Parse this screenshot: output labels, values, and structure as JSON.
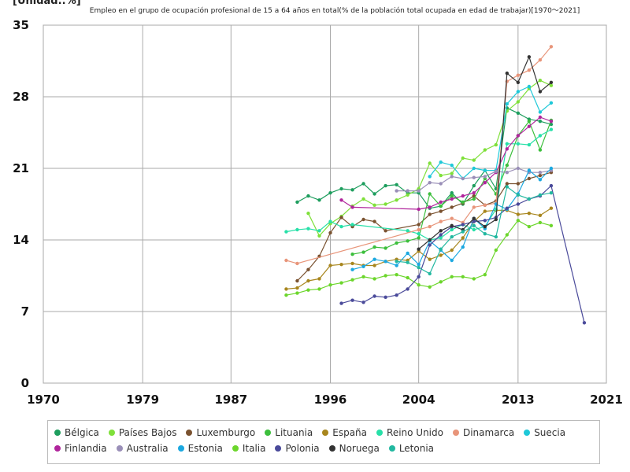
{
  "unit_label": "[Unidad.:%]",
  "chart_data": {
    "type": "line",
    "title": "Empleo en el grupo de ocupación profesional de 15 a 64 años en total(% de la población total ocupada en edad de trabajar)[1970～2021]",
    "xlabel": "",
    "ylabel": "",
    "xlim": [
      1970,
      2021
    ],
    "ylim": [
      0,
      35
    ],
    "xticks": [
      1970,
      1979,
      1987,
      1996,
      2004,
      2013,
      2021
    ],
    "yticks": [
      0,
      7,
      14,
      21,
      28,
      35
    ],
    "grid": true,
    "legend_position": "bottom",
    "series": [
      {
        "name": "Bélgica",
        "color": "#1e9e5e",
        "points": [
          [
            1993,
            17.7
          ],
          [
            1994,
            18.3
          ],
          [
            1995,
            17.9
          ],
          [
            1996,
            18.6
          ],
          [
            1997,
            19.0
          ],
          [
            1998,
            18.9
          ],
          [
            1999,
            19.5
          ],
          [
            2000,
            18.5
          ],
          [
            2001,
            19.3
          ],
          [
            2002,
            19.4
          ],
          [
            2003,
            18.6
          ],
          [
            2004,
            18.6
          ],
          [
            2005,
            17.1
          ],
          [
            2006,
            17.3
          ],
          [
            2007,
            18.6
          ],
          [
            2008,
            17.5
          ],
          [
            2009,
            19.3
          ],
          [
            2010,
            20.8
          ],
          [
            2011,
            19.0
          ],
          [
            2012,
            26.9
          ],
          [
            2013,
            26.4
          ],
          [
            2014,
            25.8
          ],
          [
            2015,
            25.6
          ],
          [
            2016,
            25.3
          ]
        ]
      },
      {
        "name": "Países Bajos",
        "color": "#7fe03a",
        "points": [
          [
            1994,
            16.6
          ],
          [
            1995,
            14.4
          ],
          [
            1996,
            15.6
          ],
          [
            1997,
            16.3
          ],
          [
            1998,
            17.3
          ],
          [
            1999,
            18.0
          ],
          [
            2000,
            17.4
          ],
          [
            2001,
            17.5
          ],
          [
            2002,
            17.9
          ],
          [
            2003,
            18.4
          ],
          [
            2004,
            19.0
          ],
          [
            2005,
            21.5
          ],
          [
            2006,
            20.3
          ],
          [
            2007,
            20.5
          ],
          [
            2008,
            22.0
          ],
          [
            2009,
            21.8
          ],
          [
            2010,
            22.8
          ],
          [
            2011,
            23.3
          ],
          [
            2012,
            26.6
          ],
          [
            2013,
            27.5
          ],
          [
            2014,
            28.8
          ],
          [
            2015,
            29.6
          ],
          [
            2016,
            29.1
          ]
        ]
      },
      {
        "name": "Luxemburgo",
        "color": "#7a5230",
        "points": [
          [
            1993,
            10.0
          ],
          [
            1994,
            11.1
          ],
          [
            1995,
            12.4
          ],
          [
            1996,
            14.7
          ],
          [
            1997,
            16.2
          ],
          [
            1998,
            15.3
          ],
          [
            1999,
            16.0
          ],
          [
            2000,
            15.8
          ],
          [
            2001,
            14.9
          ],
          [
            2004,
            15.5
          ],
          [
            2005,
            16.5
          ],
          [
            2006,
            16.8
          ],
          [
            2007,
            17.2
          ],
          [
            2008,
            17.6
          ],
          [
            2009,
            18.3
          ],
          [
            2010,
            17.4
          ],
          [
            2011,
            17.8
          ],
          [
            2012,
            19.5
          ],
          [
            2013,
            19.5
          ],
          [
            2014,
            20.0
          ],
          [
            2015,
            20.3
          ],
          [
            2016,
            20.6
          ]
        ]
      },
      {
        "name": "Lituania",
        "color": "#3cbf3c",
        "points": [
          [
            1998,
            12.6
          ],
          [
            1999,
            12.8
          ],
          [
            2000,
            13.3
          ],
          [
            2001,
            13.2
          ],
          [
            2002,
            13.7
          ],
          [
            2003,
            13.9
          ],
          [
            2004,
            14.2
          ],
          [
            2005,
            18.5
          ],
          [
            2006,
            17.3
          ],
          [
            2007,
            18.3
          ],
          [
            2008,
            17.7
          ],
          [
            2009,
            18.0
          ],
          [
            2010,
            20.0
          ],
          [
            2011,
            18.5
          ],
          [
            2012,
            21.3
          ],
          [
            2013,
            24.2
          ],
          [
            2014,
            25.6
          ],
          [
            2015,
            22.8
          ],
          [
            2016,
            25.7
          ]
        ]
      },
      {
        "name": "España",
        "color": "#a8861e",
        "points": [
          [
            1992,
            9.2
          ],
          [
            1993,
            9.3
          ],
          [
            1994,
            10.0
          ],
          [
            1995,
            10.2
          ],
          [
            1996,
            11.5
          ],
          [
            1997,
            11.6
          ],
          [
            1998,
            11.7
          ],
          [
            1999,
            11.5
          ],
          [
            2000,
            11.5
          ],
          [
            2001,
            11.9
          ],
          [
            2002,
            12.1
          ],
          [
            2003,
            12.0
          ],
          [
            2004,
            12.9
          ],
          [
            2005,
            12.1
          ],
          [
            2006,
            12.5
          ],
          [
            2007,
            13.0
          ],
          [
            2008,
            14.2
          ],
          [
            2009,
            15.8
          ],
          [
            2010,
            16.8
          ],
          [
            2011,
            16.9
          ],
          [
            2012,
            16.9
          ],
          [
            2013,
            16.5
          ],
          [
            2014,
            16.6
          ],
          [
            2015,
            16.4
          ],
          [
            2016,
            17.1
          ]
        ]
      },
      {
        "name": "Reino Unido",
        "color": "#27e0a8",
        "points": [
          [
            1992,
            14.8
          ],
          [
            1993,
            15.0
          ],
          [
            1994,
            15.1
          ],
          [
            1995,
            14.9
          ],
          [
            1996,
            15.8
          ],
          [
            1997,
            15.3
          ],
          [
            1998,
            15.5
          ],
          [
            2003,
            14.9
          ],
          [
            2004,
            14.6
          ],
          [
            2005,
            14.0
          ],
          [
            2006,
            14.2
          ],
          [
            2007,
            15.0
          ],
          [
            2008,
            15.5
          ],
          [
            2009,
            15.0
          ],
          [
            2010,
            15.3
          ],
          [
            2011,
            17.0
          ],
          [
            2012,
            23.4
          ],
          [
            2013,
            23.4
          ],
          [
            2014,
            23.3
          ],
          [
            2015,
            24.2
          ],
          [
            2016,
            24.8
          ]
        ]
      },
      {
        "name": "Dinamarca",
        "color": "#e8957a",
        "points": [
          [
            1992,
            12.0
          ],
          [
            1993,
            11.7
          ],
          [
            2004,
            15.0
          ],
          [
            2005,
            15.3
          ],
          [
            2006,
            15.8
          ],
          [
            2007,
            16.1
          ],
          [
            2008,
            15.7
          ],
          [
            2009,
            17.2
          ],
          [
            2010,
            17.4
          ],
          [
            2011,
            17.6
          ],
          [
            2012,
            29.5
          ],
          [
            2013,
            30.1
          ],
          [
            2014,
            30.6
          ],
          [
            2015,
            31.6
          ],
          [
            2016,
            32.9
          ]
        ]
      },
      {
        "name": "Suecia",
        "color": "#1ec8d8",
        "points": [
          [
            2005,
            20.2
          ],
          [
            2006,
            21.6
          ],
          [
            2007,
            21.3
          ],
          [
            2008,
            20.0
          ],
          [
            2009,
            21.0
          ],
          [
            2010,
            20.8
          ],
          [
            2011,
            20.8
          ],
          [
            2012,
            27.3
          ],
          [
            2013,
            28.5
          ],
          [
            2014,
            29.0
          ],
          [
            2015,
            26.5
          ],
          [
            2016,
            27.4
          ]
        ]
      },
      {
        "name": "Finlandia",
        "color": "#b0259c",
        "points": [
          [
            1997,
            17.9
          ],
          [
            1998,
            17.2
          ],
          [
            2004,
            17.0
          ],
          [
            2005,
            17.2
          ],
          [
            2006,
            17.7
          ],
          [
            2007,
            18.0
          ],
          [
            2008,
            18.3
          ],
          [
            2009,
            18.6
          ],
          [
            2010,
            19.6
          ],
          [
            2011,
            20.6
          ],
          [
            2012,
            22.9
          ],
          [
            2013,
            24.2
          ],
          [
            2014,
            25.1
          ],
          [
            2015,
            26.0
          ],
          [
            2016,
            25.6
          ]
        ]
      },
      {
        "name": "Australia",
        "color": "#9a8fb8",
        "points": [
          [
            2002,
            18.8
          ],
          [
            2003,
            18.8
          ],
          [
            2004,
            18.8
          ],
          [
            2005,
            19.6
          ],
          [
            2006,
            19.5
          ],
          [
            2007,
            20.2
          ],
          [
            2008,
            20.0
          ],
          [
            2009,
            20.1
          ],
          [
            2010,
            20.2
          ],
          [
            2011,
            20.7
          ],
          [
            2012,
            20.6
          ],
          [
            2013,
            21.0
          ],
          [
            2014,
            20.6
          ],
          [
            2015,
            20.6
          ],
          [
            2016,
            20.8
          ]
        ]
      },
      {
        "name": "Estonia",
        "color": "#1ba8e0",
        "points": [
          [
            1998,
            11.1
          ],
          [
            1999,
            11.4
          ],
          [
            2000,
            12.1
          ],
          [
            2001,
            11.9
          ],
          [
            2002,
            11.5
          ],
          [
            2003,
            12.7
          ],
          [
            2004,
            11.6
          ],
          [
            2005,
            13.9
          ],
          [
            2006,
            13.0
          ],
          [
            2007,
            12.0
          ],
          [
            2008,
            13.3
          ],
          [
            2009,
            16.1
          ],
          [
            2010,
            15.1
          ],
          [
            2011,
            17.5
          ],
          [
            2012,
            17.0
          ],
          [
            2013,
            18.5
          ],
          [
            2014,
            20.8
          ],
          [
            2015,
            19.9
          ],
          [
            2016,
            21.0
          ]
        ]
      },
      {
        "name": "Italia",
        "color": "#6cd62c",
        "points": [
          [
            1992,
            8.6
          ],
          [
            1993,
            8.8
          ],
          [
            1994,
            9.1
          ],
          [
            1995,
            9.2
          ],
          [
            1996,
            9.6
          ],
          [
            1997,
            9.8
          ],
          [
            1998,
            10.1
          ],
          [
            1999,
            10.4
          ],
          [
            2000,
            10.2
          ],
          [
            2001,
            10.5
          ],
          [
            2002,
            10.6
          ],
          [
            2003,
            10.3
          ],
          [
            2004,
            9.6
          ],
          [
            2005,
            9.4
          ],
          [
            2006,
            9.9
          ],
          [
            2007,
            10.4
          ],
          [
            2008,
            10.4
          ],
          [
            2009,
            10.2
          ],
          [
            2010,
            10.6
          ],
          [
            2011,
            13.0
          ],
          [
            2012,
            14.5
          ],
          [
            2013,
            15.9
          ],
          [
            2014,
            15.3
          ],
          [
            2015,
            15.7
          ],
          [
            2016,
            15.4
          ]
        ]
      },
      {
        "name": "Polonia",
        "color": "#4a4a9a",
        "points": [
          [
            1997,
            7.8
          ],
          [
            1998,
            8.1
          ],
          [
            1999,
            7.9
          ],
          [
            2000,
            8.5
          ],
          [
            2001,
            8.4
          ],
          [
            2002,
            8.6
          ],
          [
            2003,
            9.2
          ],
          [
            2004,
            10.4
          ],
          [
            2005,
            13.5
          ],
          [
            2006,
            14.5
          ],
          [
            2007,
            15.3
          ],
          [
            2008,
            15.5
          ],
          [
            2009,
            15.8
          ],
          [
            2010,
            15.9
          ],
          [
            2011,
            16.2
          ],
          [
            2012,
            17.1
          ],
          [
            2013,
            17.5
          ],
          [
            2014,
            18.0
          ],
          [
            2015,
            18.3
          ],
          [
            2016,
            19.3
          ],
          [
            2019,
            5.9
          ]
        ]
      },
      {
        "name": "Noruega",
        "color": "#333333",
        "points": [
          [
            2004,
            13.1
          ],
          [
            2005,
            14.0
          ],
          [
            2006,
            14.9
          ],
          [
            2007,
            15.4
          ],
          [
            2008,
            15.0
          ],
          [
            2009,
            16.1
          ],
          [
            2010,
            15.3
          ],
          [
            2011,
            16.0
          ],
          [
            2012,
            30.3
          ],
          [
            2013,
            29.4
          ],
          [
            2014,
            31.9
          ],
          [
            2015,
            28.5
          ],
          [
            2016,
            29.4
          ]
        ]
      },
      {
        "name": "Letonia",
        "color": "#22b8a0",
        "points": [
          [
            2002,
            11.9
          ],
          [
            2003,
            11.8
          ],
          [
            2004,
            11.3
          ],
          [
            2005,
            10.7
          ],
          [
            2006,
            13.1
          ],
          [
            2007,
            14.3
          ],
          [
            2008,
            14.8
          ],
          [
            2009,
            15.4
          ],
          [
            2010,
            14.6
          ],
          [
            2011,
            14.3
          ],
          [
            2012,
            19.2
          ],
          [
            2013,
            18.4
          ],
          [
            2014,
            18.0
          ],
          [
            2015,
            18.4
          ],
          [
            2016,
            18.6
          ]
        ]
      }
    ]
  }
}
